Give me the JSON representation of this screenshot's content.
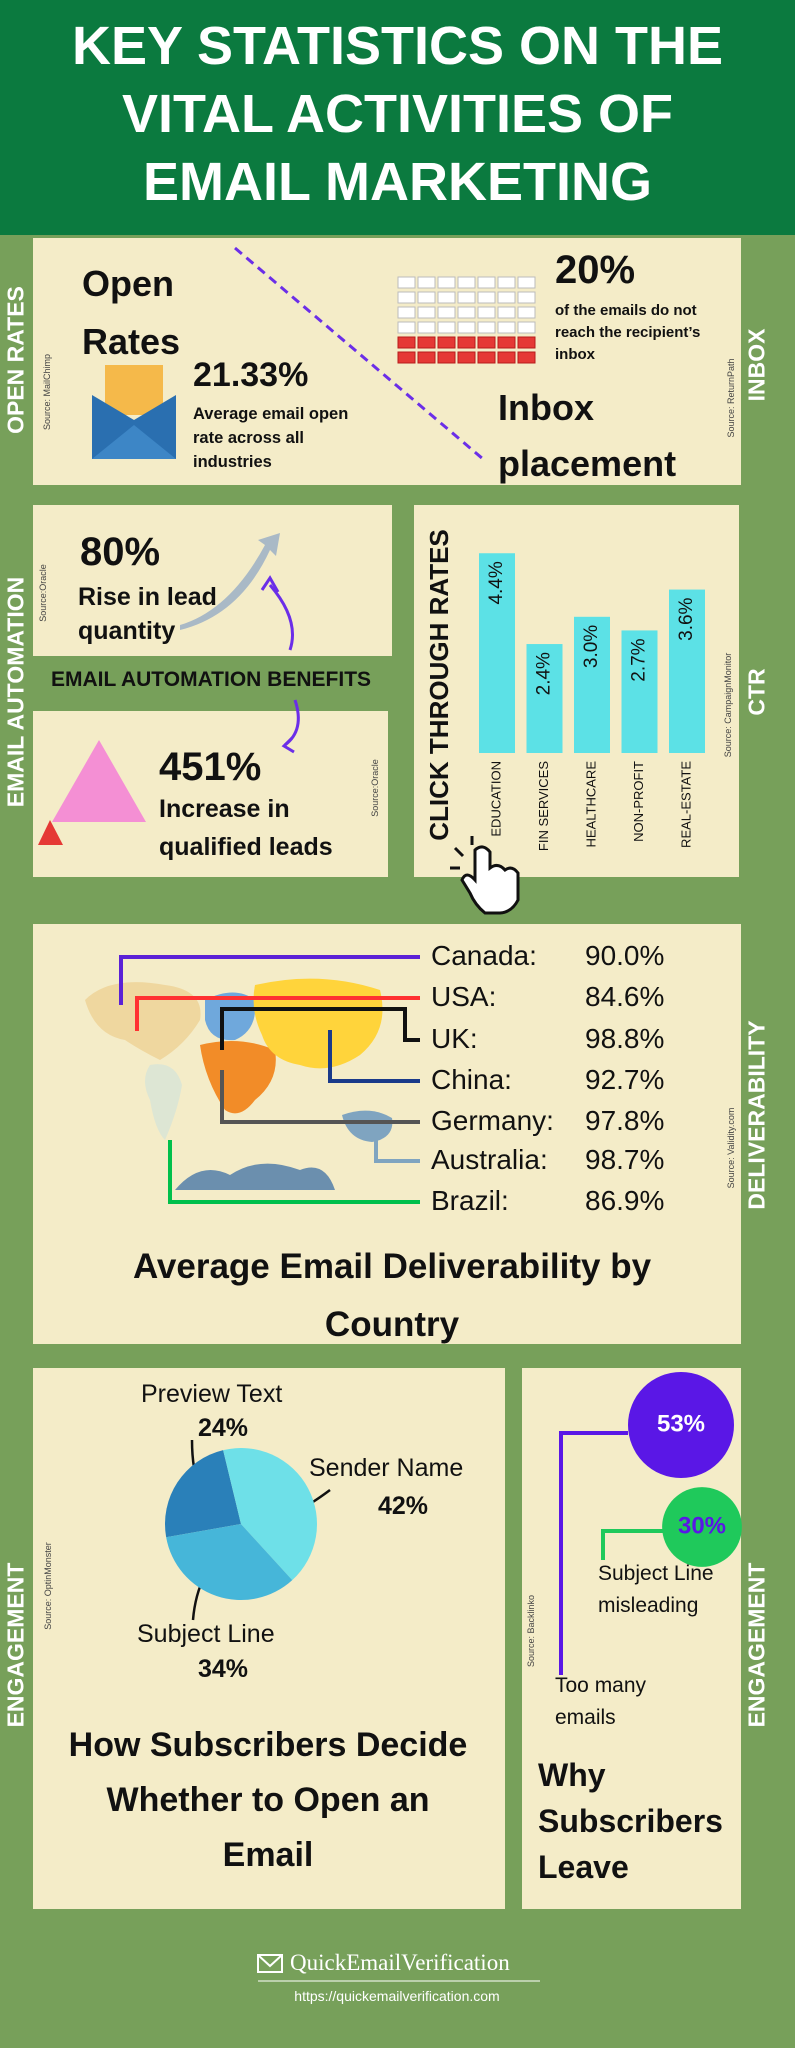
{
  "header": {
    "title": "KEY STATISTICS ON THE VITAL ACTIVITIES OF EMAIL MARKETING"
  },
  "open_rates": {
    "side_label": "OPEN RATES",
    "heading": "Open Rates",
    "stat": "21.33%",
    "text": "Average email open rate across all industries",
    "source": "Source: MailChimp"
  },
  "inbox": {
    "side_label": "INBOX",
    "stat": "20%",
    "text": "of the emails do not reach the recipient’s inbox",
    "heading": "Inbox placement",
    "source": "Source: ReturnPath"
  },
  "automation": {
    "side_label": "EMAIL AUTOMATION",
    "heading": "EMAIL AUTOMATION BENEFITS",
    "items": [
      {
        "stat": "80%",
        "text": "Rise in lead quantity",
        "source": "Source:Oracle"
      },
      {
        "stat": "451%",
        "text": "Increase in qualified leads",
        "source": "Source:Oracle"
      }
    ]
  },
  "ctr": {
    "side_label": "CTR",
    "source": "Source: CampaignMonitor"
  },
  "deliverability": {
    "side_label": "DELIVERABILITY",
    "title": "Average Email Deliverability by Country",
    "source": "Source: Validity.com",
    "rows": [
      [
        "Canada:",
        "90.0%"
      ],
      [
        "USA:",
        "84.6%"
      ],
      [
        "UK:",
        "98.8%"
      ],
      [
        "China:",
        "92.7%"
      ],
      [
        "Germany:",
        "97.8%"
      ],
      [
        "Australia:",
        "98.7%"
      ],
      [
        "Brazil:",
        "86.9%"
      ]
    ]
  },
  "engagement": {
    "side_label_left": "ENGAGEMENT",
    "side_label_right": "ENGAGEMENT",
    "source_left": "Source: OptinMonster",
    "source_right": "Source: Backlinko"
  },
  "chart_data": [
    {
      "type": "bar",
      "title": "CLICK THROUGH RATES",
      "categories": [
        "EDUCATION",
        "FIN SERVICES",
        "HEALTHCARE",
        "NON-PROFIT",
        "REAL-ESTATE"
      ],
      "values": [
        4.4,
        2.4,
        3.0,
        2.7,
        3.6
      ],
      "value_labels": [
        "4.4%",
        "2.4%",
        "3.0%",
        "2.7%",
        "3.6%"
      ],
      "color": "#5ce1e6",
      "ylim": [
        0,
        5
      ]
    },
    {
      "type": "pie",
      "title": "How Subscribers Decide Whether to Open an Email",
      "categories": [
        "Preview Text",
        "Sender Name",
        "Subject Line"
      ],
      "values": [
        24,
        42,
        34
      ],
      "value_labels": [
        "24%",
        "42%",
        "34%"
      ],
      "colors": [
        "#2a80b9",
        "#6ee0e8",
        "#46b6d9"
      ]
    },
    {
      "type": "bubble",
      "title": "Why Subscribers Leave",
      "categories": [
        "Too many emails",
        "Subject Line misleading"
      ],
      "values": [
        53,
        30
      ],
      "value_labels": [
        "53%",
        "30%"
      ],
      "colors": [
        "#5a17e6",
        "#1fc95b"
      ],
      "label_colors": [
        "#ffffff",
        "#5a17e6"
      ]
    }
  ],
  "footer": {
    "brand": "QuickEmailVerification",
    "url": "https://quickemailverification.com"
  }
}
